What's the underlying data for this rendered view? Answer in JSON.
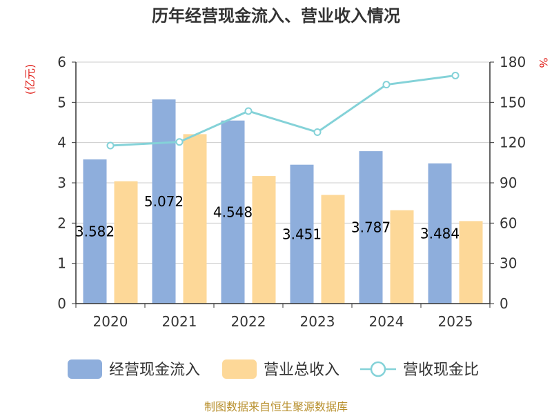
{
  "chart_data": {
    "type": "bar",
    "title": "历年经营现金流入、营业收入情况",
    "categories": [
      "2020",
      "2021",
      "2022",
      "2023",
      "2024",
      "2025"
    ],
    "series": [
      {
        "name": "经营现金流入",
        "type": "bar",
        "axis": "left",
        "color": "#8eaedc",
        "values": [
          3.582,
          5.072,
          4.548,
          3.451,
          3.787,
          3.484
        ]
      },
      {
        "name": "营业总收入",
        "type": "bar",
        "axis": "left",
        "color": "#fdd898",
        "values": [
          3.04,
          4.21,
          3.17,
          2.7,
          2.32,
          2.05
        ]
      },
      {
        "name": "营收现金比",
        "type": "line",
        "axis": "right",
        "color": "#84d2d8",
        "values": [
          117.8,
          120.5,
          143.5,
          127.8,
          163.2,
          170.0
        ]
      }
    ],
    "data_labels": [
      "3.582",
      "5.072",
      "4.548",
      "3.451",
      "3.787",
      "3.484"
    ],
    "y_left": {
      "label": "(亿元)",
      "min": 0,
      "max": 6,
      "ticks": [
        "0",
        "1",
        "2",
        "3",
        "4",
        "5",
        "6"
      ]
    },
    "y_right": {
      "label": "%",
      "min": 0,
      "max": 180,
      "ticks": [
        "0",
        "30",
        "60",
        "90",
        "120",
        "150",
        "180"
      ]
    },
    "grid": true,
    "legend_position": "bottom"
  },
  "source": "制图数据来自恒生聚源数据库"
}
